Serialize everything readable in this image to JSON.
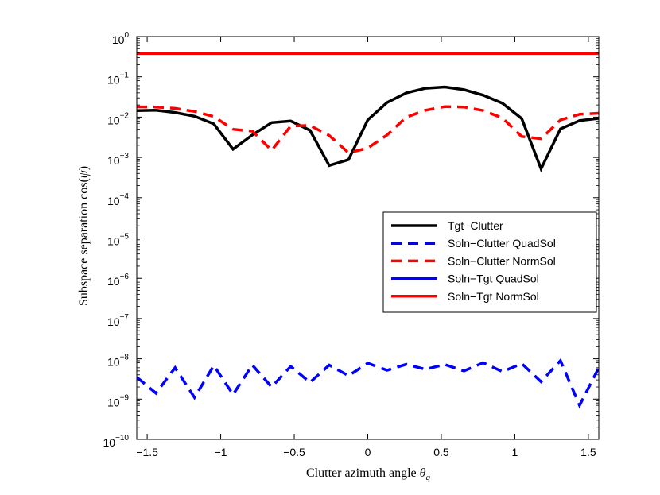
{
  "chart_data": {
    "type": "line",
    "xlabel": "Clutter azimuth angle θ_q",
    "ylabel": "Subspace separation cos(ψ)",
    "xlim": [
      -1.5708,
      1.5708
    ],
    "ylim_exponents": [
      -10,
      0
    ],
    "y_scale": "log",
    "x_ticks": [
      -1.5,
      -1,
      -0.5,
      0,
      0.5,
      1,
      1.5
    ],
    "x_tick_labels": [
      "−1.5",
      "−1",
      "−0.5",
      "0",
      "0.5",
      "1",
      "1.5"
    ],
    "y_tick_exponents": [
      0,
      -1,
      -2,
      -3,
      -4,
      -5,
      -6,
      -7,
      -8,
      -9,
      -10
    ],
    "y_tick_labels": [
      "10",
      "10",
      "10",
      "10",
      "10",
      "10",
      "10",
      "10",
      "10",
      "10",
      "10"
    ],
    "y_tick_exponent_labels": [
      "0",
      "−1",
      "−2",
      "−3",
      "−4",
      "−5",
      "−6",
      "−7",
      "−8",
      "−9",
      "−10"
    ],
    "grid": false,
    "legend_position": "right-middle",
    "series": [
      {
        "name": "Tgt−Clutter",
        "color": "#000000",
        "dash": "solid",
        "x": [
          -1.571,
          -1.44,
          -1.31,
          -1.178,
          -1.047,
          -0.916,
          -0.785,
          -0.654,
          -0.524,
          -0.393,
          -0.262,
          -0.131,
          0.0,
          0.131,
          0.262,
          0.393,
          0.524,
          0.654,
          0.785,
          0.916,
          1.047,
          1.178,
          1.31,
          1.44,
          1.571
        ],
        "y": [
          0.0145,
          0.0148,
          0.013,
          0.0105,
          0.0068,
          0.0016,
          0.0036,
          0.0073,
          0.008,
          0.0047,
          0.00063,
          0.00088,
          0.0085,
          0.023,
          0.04,
          0.052,
          0.056,
          0.048,
          0.035,
          0.022,
          0.0092,
          0.00052,
          0.0051,
          0.0082,
          0.0093
        ]
      },
      {
        "name": "Soln−Clutter QuadSol",
        "color": "#0000ff",
        "dash": "dashed",
        "x": [
          -1.571,
          -1.44,
          -1.31,
          -1.178,
          -1.047,
          -0.916,
          -0.785,
          -0.654,
          -0.524,
          -0.393,
          -0.262,
          -0.131,
          0.0,
          0.131,
          0.262,
          0.393,
          0.524,
          0.654,
          0.785,
          0.916,
          1.047,
          1.178,
          1.31,
          1.44,
          1.571
        ],
        "y": [
          3.5e-09,
          1.4e-09,
          6e-09,
          1.1e-09,
          6.8e-09,
          1.3e-09,
          7e-09,
          2e-09,
          6.5e-09,
          2.6e-09,
          7e-09,
          3.8e-09,
          7.8e-09,
          5.2e-09,
          7.3e-09,
          5.5e-09,
          7.2e-09,
          5e-09,
          8e-09,
          4.8e-09,
          7.6e-09,
          2.7e-09,
          9e-09,
          7e-10,
          6e-09
        ]
      },
      {
        "name": "Soln−Clutter NormSol",
        "color": "#ff0000",
        "dash": "dashed",
        "x": [
          -1.571,
          -1.44,
          -1.31,
          -1.178,
          -1.047,
          -0.916,
          -0.785,
          -0.654,
          -0.524,
          -0.393,
          -0.262,
          -0.131,
          0.0,
          0.131,
          0.262,
          0.393,
          0.524,
          0.654,
          0.785,
          0.916,
          1.047,
          1.178,
          1.31,
          1.44,
          1.571
        ],
        "y": [
          0.018,
          0.0178,
          0.0165,
          0.0138,
          0.0103,
          0.005,
          0.0045,
          0.0015,
          0.006,
          0.0062,
          0.0035,
          0.0013,
          0.0017,
          0.0036,
          0.01,
          0.0148,
          0.0182,
          0.0178,
          0.0145,
          0.0095,
          0.0033,
          0.0029,
          0.0085,
          0.0118,
          0.0125
        ]
      },
      {
        "name": "Soln−Tgt QuadSol",
        "color": "#0000ff",
        "dash": "solid",
        "x": [],
        "y": []
      },
      {
        "name": "Soln−Tgt NormSol",
        "color": "#ff0000",
        "dash": "solid",
        "x": [
          -1.571,
          1.571
        ],
        "y": [
          0.38,
          0.38
        ]
      }
    ]
  }
}
